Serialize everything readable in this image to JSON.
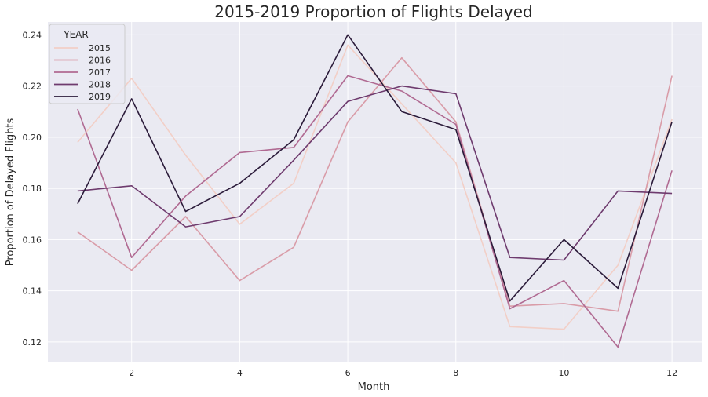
{
  "chart_data": {
    "type": "line",
    "title": "2015-2019 Proportion of Flights Delayed",
    "xlabel": "Month",
    "ylabel": "Proportion of Delayed Flights",
    "x": [
      1,
      2,
      3,
      4,
      5,
      6,
      7,
      8,
      9,
      10,
      11,
      12
    ],
    "xlim": [
      0.45,
      12.55
    ],
    "ylim": [
      0.112,
      0.245
    ],
    "xticks": [
      2,
      4,
      6,
      8,
      10,
      12
    ],
    "yticks": [
      0.12,
      0.14,
      0.16,
      0.18,
      0.2,
      0.22,
      0.24
    ],
    "ytick_labels": [
      "0.12",
      "0.14",
      "0.16",
      "0.18",
      "0.20",
      "0.22",
      "0.24"
    ],
    "grid": true,
    "legend": {
      "title": "YEAR",
      "placement": "top-left"
    },
    "series": [
      {
        "name": "2015",
        "color": "#f2cfc7",
        "values": [
          0.198,
          0.223,
          0.193,
          0.166,
          0.182,
          0.236,
          0.213,
          0.19,
          0.126,
          0.125,
          0.15,
          0.207
        ]
      },
      {
        "name": "2016",
        "color": "#d99ca8",
        "values": [
          0.163,
          0.148,
          0.169,
          0.144,
          0.157,
          0.206,
          0.231,
          0.206,
          0.134,
          0.135,
          0.132,
          0.224
        ]
      },
      {
        "name": "2017",
        "color": "#b06a92",
        "values": [
          0.211,
          0.153,
          0.177,
          0.194,
          0.196,
          0.224,
          0.218,
          0.205,
          0.133,
          0.144,
          0.118,
          0.187
        ]
      },
      {
        "name": "2018",
        "color": "#6e3b6e",
        "values": [
          0.179,
          0.181,
          0.165,
          0.169,
          0.191,
          0.214,
          0.22,
          0.217,
          0.153,
          0.152,
          0.179,
          0.178
        ]
      },
      {
        "name": "2019",
        "color": "#2b1b3a",
        "values": [
          0.174,
          0.215,
          0.171,
          0.182,
          0.199,
          0.24,
          0.21,
          0.203,
          0.136,
          0.16,
          0.141,
          0.206
        ]
      }
    ]
  }
}
